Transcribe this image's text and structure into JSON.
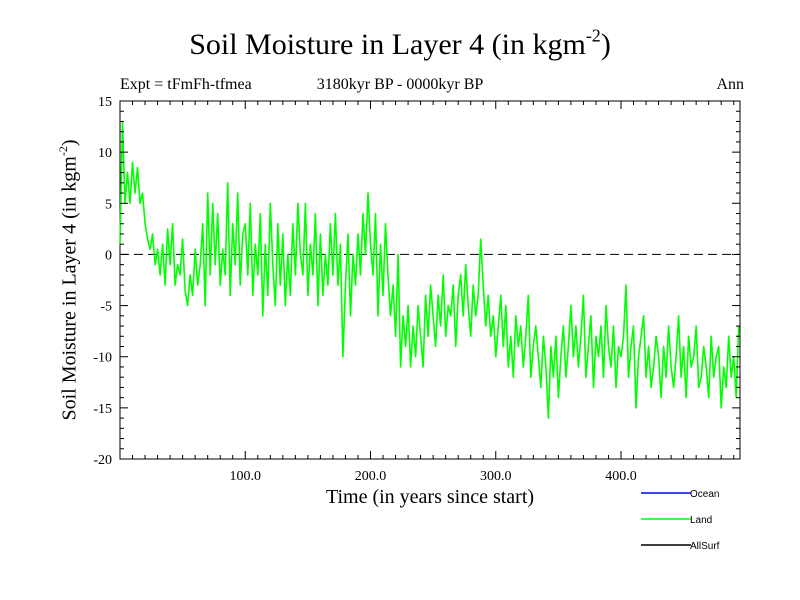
{
  "chart_data": {
    "type": "line",
    "title": "Soil Moisture in Layer 4 (in kgm",
    "title_sup": "-2",
    "title_end": ")",
    "subtitle": "3180kyr BP - 0000kyr BP",
    "expt_label": "Expt = tFmFh-tfmea",
    "season_label": "Ann",
    "xlabel": "Time (in years since start)",
    "ylabel": "Soil Moisture in Layer 4 (in kgm",
    "ylabel_sup": "-2",
    "ylabel_end": ")",
    "xlim": [
      0,
      495
    ],
    "ylim": [
      -20,
      15
    ],
    "xticks": [
      100,
      200,
      300,
      400
    ],
    "xtick_labels": [
      "100.0",
      "200.0",
      "300.0",
      "400.0"
    ],
    "yticks": [
      -20,
      -15,
      -10,
      -5,
      0,
      5,
      10,
      15
    ],
    "ytick_labels": [
      "-20",
      "-15",
      "-10",
      "-5",
      "0",
      "5",
      "10",
      "15"
    ],
    "zero_line": 0,
    "legend": [
      {
        "name": "Ocean",
        "color": "#0000ff"
      },
      {
        "name": "Land",
        "color": "#00ff00"
      },
      {
        "name": "AllSurf",
        "color": "#000000"
      }
    ],
    "series": [
      {
        "name": "Land",
        "color": "#00ff00",
        "x": [
          0,
          2,
          4,
          6,
          8,
          10,
          12,
          14,
          16,
          18,
          20,
          22,
          24,
          26,
          28,
          30,
          32,
          34,
          36,
          38,
          40,
          42,
          44,
          46,
          48,
          50,
          52,
          54,
          56,
          58,
          60,
          62,
          64,
          66,
          68,
          70,
          72,
          74,
          76,
          78,
          80,
          82,
          84,
          86,
          88,
          90,
          92,
          94,
          96,
          98,
          100,
          102,
          104,
          106,
          108,
          110,
          112,
          114,
          116,
          118,
          120,
          122,
          124,
          126,
          128,
          130,
          132,
          134,
          136,
          138,
          140,
          142,
          144,
          146,
          148,
          150,
          152,
          154,
          156,
          158,
          160,
          162,
          164,
          166,
          168,
          170,
          172,
          174,
          176,
          178,
          180,
          182,
          184,
          186,
          188,
          190,
          192,
          194,
          196,
          198,
          200,
          202,
          204,
          206,
          208,
          210,
          212,
          214,
          216,
          218,
          220,
          222,
          224,
          226,
          228,
          230,
          232,
          234,
          236,
          238,
          240,
          242,
          244,
          246,
          248,
          250,
          252,
          254,
          256,
          258,
          260,
          262,
          264,
          266,
          268,
          270,
          272,
          274,
          276,
          278,
          280,
          282,
          284,
          286,
          288,
          290,
          292,
          294,
          296,
          298,
          300,
          302,
          304,
          306,
          308,
          310,
          312,
          314,
          316,
          318,
          320,
          322,
          324,
          326,
          328,
          330,
          332,
          334,
          336,
          338,
          340,
          342,
          344,
          346,
          348,
          350,
          352,
          354,
          356,
          358,
          360,
          362,
          364,
          366,
          368,
          370,
          372,
          374,
          376,
          378,
          380,
          382,
          384,
          386,
          388,
          390,
          392,
          394,
          396,
          398,
          400,
          402,
          404,
          406,
          408,
          410,
          412,
          414,
          416,
          418,
          420,
          422,
          424,
          426,
          428,
          430,
          432,
          434,
          436,
          438,
          440,
          442,
          444,
          446,
          448,
          450,
          452,
          454,
          456,
          458,
          460,
          462,
          464,
          466,
          468,
          470,
          472,
          474,
          476,
          478,
          480,
          482,
          484,
          486,
          488,
          490,
          492,
          494
        ],
        "values": [
          1,
          13,
          5,
          8,
          5,
          9,
          6,
          8.5,
          5,
          6,
          3,
          1.5,
          0.5,
          2,
          -1,
          0.5,
          -2,
          1,
          -3,
          2.5,
          -1,
          3,
          -3,
          -1,
          -2,
          1.5,
          -3.5,
          -5,
          -2,
          -4,
          0.5,
          -3,
          -1,
          3,
          -5,
          6,
          -2,
          5,
          -1,
          4,
          -3,
          0.5,
          -2,
          7,
          -4,
          3,
          -1,
          6,
          -3,
          2,
          3,
          -2,
          5,
          -4,
          1,
          -2,
          4,
          -6,
          1,
          -4,
          5,
          -1,
          -5,
          3,
          -3,
          2,
          -5,
          0,
          -4,
          3,
          -2,
          5,
          0,
          -2,
          5,
          -4,
          1,
          -2,
          4,
          -5,
          2,
          -4,
          0,
          -3,
          3,
          -2,
          4,
          -3,
          1,
          -10,
          -3,
          2,
          -6,
          0,
          -3,
          2,
          -2,
          4,
          0,
          6,
          1,
          -2,
          4,
          -6,
          1,
          -4,
          3,
          -2,
          -6,
          -3,
          -8,
          0,
          -11,
          -6,
          -9,
          -5,
          -11,
          -7,
          -10,
          -5,
          -8,
          -11,
          -4,
          -8,
          -3,
          -6,
          -9,
          -4,
          -7,
          -2,
          -8,
          -5,
          -6,
          -3,
          -9,
          -4,
          -2,
          -6,
          -1,
          -5,
          -8,
          -3,
          -6,
          -4,
          1.5,
          -3,
          -7,
          -4,
          -8,
          -6,
          -10,
          -7,
          -4,
          -9,
          -5,
          -11,
          -8,
          -12,
          -6,
          -9,
          -7,
          -11,
          -8,
          -4,
          -12,
          -9,
          -7,
          -10,
          -13,
          -8,
          -11,
          -16,
          -9,
          -12,
          -8,
          -14,
          -10,
          -7,
          -12,
          -9,
          -5,
          -10,
          -7,
          -11,
          -8,
          -4,
          -12,
          -9,
          -6,
          -13,
          -8,
          -10,
          -7,
          -12,
          -5,
          -9,
          -11,
          -7,
          -13,
          -9,
          -10,
          -8,
          -3,
          -12,
          -9,
          -7,
          -15,
          -10,
          -8,
          -6,
          -12,
          -9,
          -13,
          -11,
          -8,
          -10,
          -14,
          -9,
          -12,
          -7,
          -11,
          -13,
          -10,
          -6,
          -12,
          -9,
          -14,
          -8,
          -11,
          -10,
          -7,
          -13,
          -12,
          -9,
          -11,
          -14,
          -8,
          -12,
          -10,
          -9,
          -15,
          -11,
          -13,
          -8,
          -12,
          -10,
          -14,
          -7
        ]
      }
    ]
  }
}
